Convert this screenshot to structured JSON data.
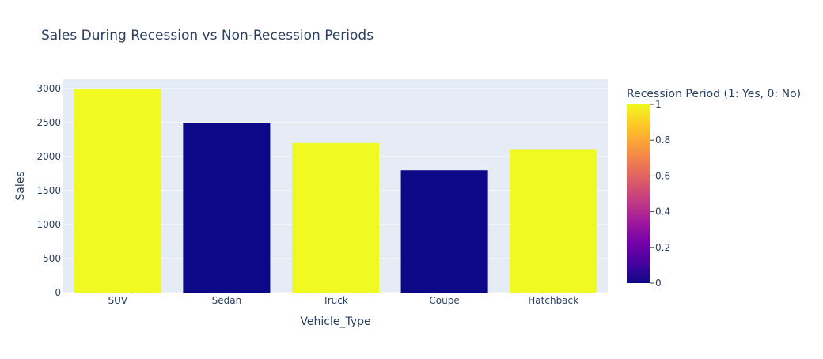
{
  "chart_data": {
    "type": "bar",
    "title": "Sales During Recession vs Non-Recession Periods",
    "xlabel": "Vehicle_Type",
    "ylabel": "Sales",
    "categories": [
      "SUV",
      "Sedan",
      "Truck",
      "Coupe",
      "Hatchback"
    ],
    "values": [
      3000,
      2500,
      2200,
      1800,
      2100
    ],
    "recession_flag": [
      1,
      0,
      1,
      0,
      1
    ],
    "ylim": [
      0,
      3140
    ],
    "yticks": [
      0,
      500,
      1000,
      1500,
      2000,
      2500,
      3000
    ],
    "grid": true,
    "colorbar": {
      "title": "Recession Period (1: Yes, 0: No)",
      "range": [
        0,
        1
      ],
      "ticks": [
        "0",
        "0.2",
        "0.4",
        "0.6",
        "0.8",
        "1"
      ],
      "colorscale": [
        "#0d0887",
        "#46039f",
        "#7201a8",
        "#9c179e",
        "#bd3786",
        "#d8576b",
        "#ed7953",
        "#fb9f3a",
        "#fdca26",
        "#f0f921"
      ]
    },
    "colors": {
      "plot_background": "#e5ecf6",
      "gridline": "#ffffff",
      "text": "#2a3f5f",
      "value_0": "#0d0887",
      "value_1": "#f0f921"
    }
  }
}
